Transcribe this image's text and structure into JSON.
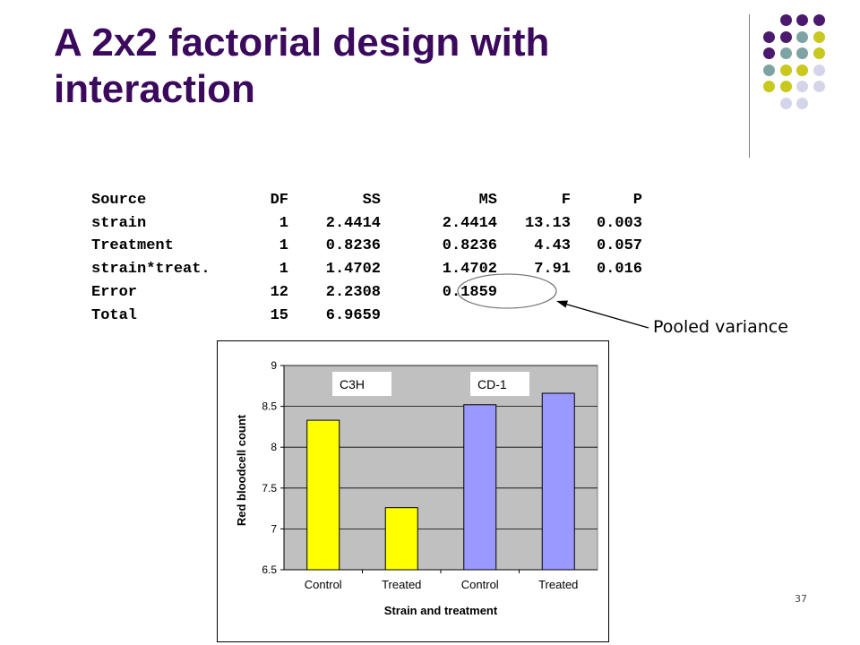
{
  "slide": {
    "title": "A 2x2 factorial design with interaction",
    "page_number": "37",
    "palette": {
      "title_color": "#3b0a5c",
      "dot_colors": [
        "#4b1a6e",
        "#7ea3a3",
        "#c8c81e",
        "#d5d5ea"
      ]
    }
  },
  "anova": {
    "header": [
      "Source",
      "DF",
      "SS",
      "MS",
      "F",
      "P"
    ],
    "rows": [
      [
        "strain",
        "1",
        "2.4414",
        "2.4414",
        "13.13",
        "0.003"
      ],
      [
        "Treatment",
        "1",
        "0.8236",
        "0.8236",
        "4.43",
        "0.057"
      ],
      [
        "strain*treat.",
        "1",
        "1.4702",
        "1.4702",
        "7.91",
        "0.016"
      ],
      [
        "Error",
        "12",
        "2.2308",
        "0.1859",
        "",
        ""
      ],
      [
        "Total",
        "15",
        "6.9659",
        "",
        "",
        ""
      ]
    ]
  },
  "callout": {
    "label": "Pooled variance"
  },
  "chart_data": {
    "type": "bar",
    "categories": [
      "Control",
      "Treated",
      "Control",
      "Treated"
    ],
    "values": [
      8.33,
      7.26,
      8.52,
      8.66
    ],
    "bar_colors": [
      "#ffff00",
      "#ffff00",
      "#9999ff",
      "#9999ff"
    ],
    "group_labels": [
      "C3H",
      "CD-1"
    ],
    "xlabel": "Strain and treatment",
    "ylabel": "Red bloodcell count",
    "ylim": [
      6.5,
      9
    ],
    "yticks": [
      6.5,
      7,
      7.5,
      8,
      8.5,
      9
    ],
    "ytick_labels": [
      "6.5",
      "7",
      "7.5",
      "8",
      "8.5",
      "9"
    ],
    "grid": true,
    "plot_background": "#c0c0c0",
    "legend": "none"
  }
}
